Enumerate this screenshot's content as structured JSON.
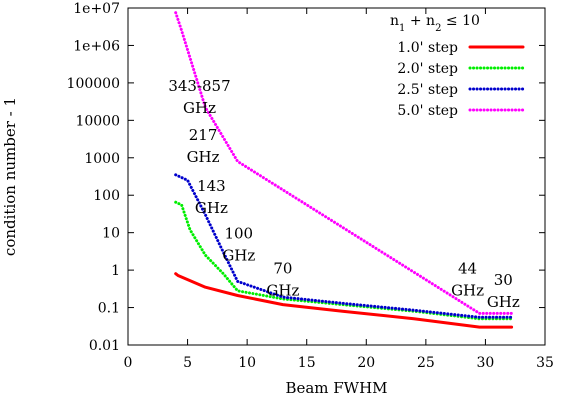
{
  "chart_data": {
    "type": "line",
    "title": "",
    "xlabel": "Beam FWHM",
    "ylabel": "condition number - 1",
    "xlim": [
      0,
      35
    ],
    "ylim": [
      0.01,
      10000000
    ],
    "y_scale": "log",
    "x_ticks": [
      "0",
      "5",
      "10",
      "15",
      "20",
      "25",
      "30",
      "35"
    ],
    "y_ticks": [
      "0.01",
      "0.1",
      "1",
      "10",
      "100",
      "1000",
      "10000",
      "100000",
      "1e+06",
      "1e+07"
    ],
    "grid": false,
    "legend_title_parts": [
      "n",
      "1",
      " + n",
      "2",
      " ≤ 10"
    ],
    "legend_placement": "top-right",
    "series": [
      {
        "name": "1.0' step",
        "color": "#ff0000",
        "style": "solid",
        "x": [
          4.0,
          4.2,
          6.5,
          9.2,
          13.0,
          18.0,
          24.0,
          29.5,
          32.2
        ],
        "y": [
          0.8,
          0.72,
          0.35,
          0.21,
          0.12,
          0.08,
          0.05,
          0.03,
          0.03
        ]
      },
      {
        "name": "2.0' step",
        "color": "#00ee00",
        "style": "dotted",
        "x": [
          4.0,
          4.5,
          5.2,
          6.5,
          8.0,
          9.2,
          13.0,
          18.0,
          24.0,
          29.5,
          32.2
        ],
        "y": [
          65,
          55,
          12,
          2.5,
          0.8,
          0.28,
          0.17,
          0.12,
          0.08,
          0.05,
          0.05
        ]
      },
      {
        "name": "2.5' step",
        "color": "#0000cc",
        "style": "dotted",
        "x": [
          4.0,
          5.0,
          6.5,
          8.0,
          9.2,
          13.0,
          18.0,
          24.0,
          29.5,
          32.2
        ],
        "y": [
          350,
          250,
          30,
          3,
          0.5,
          0.19,
          0.13,
          0.085,
          0.055,
          0.055
        ]
      },
      {
        "name": "5.0' step",
        "color": "#ff00ff",
        "style": "dotted",
        "x": [
          4.0,
          4.5,
          6.5,
          9.2,
          29.5,
          32.2
        ],
        "y": [
          7500000,
          2500000,
          22000,
          800,
          0.07,
          0.07
        ]
      }
    ],
    "annotations": [
      {
        "lines": [
          "343-857",
          "GHz"
        ],
        "x": 6.0,
        "y": 60000
      },
      {
        "lines": [
          "217",
          "GHz"
        ],
        "x": 6.3,
        "y": 3000
      },
      {
        "lines": [
          "143",
          "GHz"
        ],
        "x": 7.0,
        "y": 130
      },
      {
        "lines": [
          "100",
          "GHz"
        ],
        "x": 9.3,
        "y": 7
      },
      {
        "lines": [
          "70",
          "GHz"
        ],
        "x": 13.0,
        "y": 0.8
      },
      {
        "lines": [
          "44",
          "GHz"
        ],
        "x": 28.5,
        "y": 0.8
      },
      {
        "lines": [
          "30",
          "GHz"
        ],
        "x": 31.5,
        "y": 0.4
      }
    ]
  }
}
